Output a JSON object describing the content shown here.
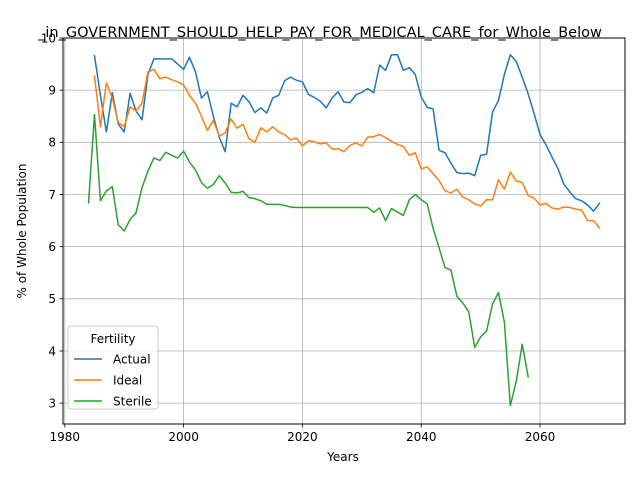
{
  "chart_data": {
    "type": "line",
    "title": "_in_GOVERNMENT_SHOULD_HELP_PAY_FOR_MEDICAL_CARE_for_Whole_Below",
    "xlabel": "Years",
    "ylabel": "% of Whole Population",
    "xlim": [
      1979.7,
      2074.3
    ],
    "ylim": [
      2.6,
      10.0
    ],
    "xticks": [
      1980,
      2000,
      2020,
      2040,
      2060
    ],
    "xtick_labels": [
      "1980",
      "2000",
      "2020",
      "2040",
      "2060"
    ],
    "yticks": [
      3,
      4,
      5,
      6,
      7,
      8,
      9,
      10
    ],
    "ytick_labels": [
      "3",
      "4",
      "5",
      "6",
      "7",
      "8",
      "9",
      "10"
    ],
    "grid": true,
    "legend": {
      "title": "Fertility",
      "placement": "lower-left"
    },
    "series": [
      {
        "name": "Actual",
        "color": "#1f77b4",
        "x": [
          1985,
          1986,
          1987,
          1988,
          1989,
          1990,
          1991,
          1992,
          1993,
          1994,
          1995,
          1996,
          1997,
          1998,
          1999,
          2000,
          2001,
          2002,
          2003,
          2004,
          2005,
          2006,
          2007,
          2008,
          2009,
          2010,
          2011,
          2012,
          2013,
          2014,
          2015,
          2016,
          2017,
          2018,
          2019,
          2020,
          2021,
          2022,
          2023,
          2024,
          2025,
          2026,
          2027,
          2028,
          2029,
          2030,
          2031,
          2032,
          2033,
          2034,
          2035,
          2036,
          2037,
          2038,
          2039,
          2040,
          2041,
          2042,
          2043,
          2044,
          2045,
          2046,
          2047,
          2048,
          2049,
          2050,
          2051,
          2052,
          2053,
          2054,
          2055,
          2056,
          2057,
          2058,
          2059,
          2060,
          2061,
          2062,
          2063,
          2064,
          2065,
          2066,
          2067,
          2068,
          2069,
          2070
        ],
        "values": [
          9.66,
          8.9,
          8.2,
          8.95,
          8.35,
          8.2,
          8.94,
          8.6,
          8.43,
          9.3,
          9.6,
          9.6,
          9.6,
          9.6,
          9.5,
          9.4,
          9.63,
          9.35,
          8.85,
          8.97,
          8.5,
          8.1,
          7.82,
          8.75,
          8.68,
          8.9,
          8.78,
          8.57,
          8.66,
          8.56,
          8.85,
          8.9,
          9.18,
          9.25,
          9.19,
          9.16,
          8.92,
          8.86,
          8.79,
          8.66,
          8.85,
          8.97,
          8.77,
          8.76,
          8.91,
          8.96,
          9.03,
          8.95,
          9.48,
          9.38,
          9.68,
          9.68,
          9.38,
          9.43,
          9.3,
          8.87,
          8.67,
          8.64,
          7.85,
          7.8,
          7.6,
          7.42,
          7.4,
          7.41,
          7.36,
          7.75,
          7.77,
          8.58,
          8.8,
          9.3,
          9.68,
          9.55,
          9.25,
          8.93,
          8.55,
          8.15,
          7.95,
          7.72,
          7.5,
          7.2,
          7.05,
          6.92,
          6.88,
          6.8,
          6.68,
          6.83
        ]
      },
      {
        "name": "Ideal",
        "color": "#ff7f0e",
        "x": [
          1985,
          1986,
          1987,
          1988,
          1989,
          1990,
          1991,
          1992,
          1993,
          1994,
          1995,
          1996,
          1997,
          1998,
          1999,
          2000,
          2001,
          2002,
          2003,
          2004,
          2005,
          2006,
          2007,
          2008,
          2009,
          2010,
          2011,
          2012,
          2013,
          2014,
          2015,
          2016,
          2017,
          2018,
          2019,
          2020,
          2021,
          2022,
          2023,
          2024,
          2025,
          2026,
          2027,
          2028,
          2029,
          2030,
          2031,
          2032,
          2033,
          2034,
          2035,
          2036,
          2037,
          2038,
          2039,
          2040,
          2041,
          2042,
          2043,
          2044,
          2045,
          2046,
          2047,
          2048,
          2049,
          2050,
          2051,
          2052,
          2053,
          2054,
          2055,
          2056,
          2057,
          2058,
          2059,
          2060,
          2061,
          2062,
          2063,
          2064,
          2065,
          2066,
          2067,
          2068,
          2069,
          2070
        ],
        "values": [
          9.27,
          8.3,
          9.14,
          8.85,
          8.38,
          8.3,
          8.68,
          8.6,
          8.75,
          9.35,
          9.4,
          9.22,
          9.25,
          9.2,
          9.16,
          9.1,
          8.9,
          8.75,
          8.5,
          8.23,
          8.42,
          8.12,
          8.18,
          8.45,
          8.27,
          8.35,
          8.07,
          8.0,
          8.28,
          8.2,
          8.3,
          8.2,
          8.15,
          8.05,
          8.08,
          7.93,
          8.03,
          8.01,
          7.97,
          7.99,
          7.87,
          7.88,
          7.82,
          7.94,
          7.99,
          7.93,
          8.1,
          8.11,
          8.15,
          8.09,
          8.02,
          7.96,
          7.92,
          7.75,
          7.8,
          7.49,
          7.53,
          7.4,
          7.27,
          7.07,
          7.03,
          7.1,
          6.95,
          6.9,
          6.82,
          6.78,
          6.9,
          6.9,
          7.28,
          7.1,
          7.43,
          7.26,
          7.23,
          6.98,
          6.93,
          6.8,
          6.83,
          6.74,
          6.72,
          6.76,
          6.75,
          6.72,
          6.7,
          6.5,
          6.5,
          6.36
        ]
      },
      {
        "name": "Sterile",
        "color": "#2ca02c",
        "x": [
          1984,
          1985,
          1986,
          1987,
          1988,
          1989,
          1990,
          1991,
          1992,
          1993,
          1994,
          1995,
          1996,
          1997,
          1998,
          1999,
          2000,
          2001,
          2002,
          2003,
          2004,
          2005,
          2006,
          2007,
          2008,
          2009,
          2010,
          2011,
          2012,
          2013,
          2014,
          2015,
          2016,
          2017,
          2018,
          2019,
          2020,
          2021,
          2022,
          2023,
          2024,
          2025,
          2026,
          2027,
          2028,
          2029,
          2030,
          2031,
          2032,
          2033,
          2034,
          2035,
          2036,
          2037,
          2038,
          2039,
          2040,
          2041,
          2042,
          2043,
          2044,
          2045,
          2046,
          2047,
          2048,
          2049,
          2050,
          2051,
          2052,
          2053,
          2054,
          2055,
          2056,
          2057,
          2058
        ],
        "values": [
          6.84,
          8.53,
          6.88,
          7.07,
          7.15,
          6.42,
          6.3,
          6.52,
          6.65,
          7.13,
          7.45,
          7.7,
          7.65,
          7.81,
          7.75,
          7.7,
          7.83,
          7.62,
          7.47,
          7.23,
          7.12,
          7.19,
          7.36,
          7.22,
          7.04,
          7.03,
          7.06,
          6.94,
          6.92,
          6.88,
          6.81,
          6.81,
          6.81,
          6.79,
          6.76,
          6.75,
          6.75,
          6.75,
          6.75,
          6.75,
          6.75,
          6.75,
          6.75,
          6.75,
          6.75,
          6.75,
          6.75,
          6.75,
          6.66,
          6.74,
          6.5,
          6.73,
          6.66,
          6.6,
          6.9,
          7.0,
          6.9,
          6.82,
          6.35,
          5.98,
          5.6,
          5.55,
          5.05,
          4.92,
          4.75,
          4.07,
          4.27,
          4.38,
          4.9,
          5.12,
          4.55,
          2.95,
          3.42,
          4.13,
          3.5
        ]
      }
    ]
  }
}
